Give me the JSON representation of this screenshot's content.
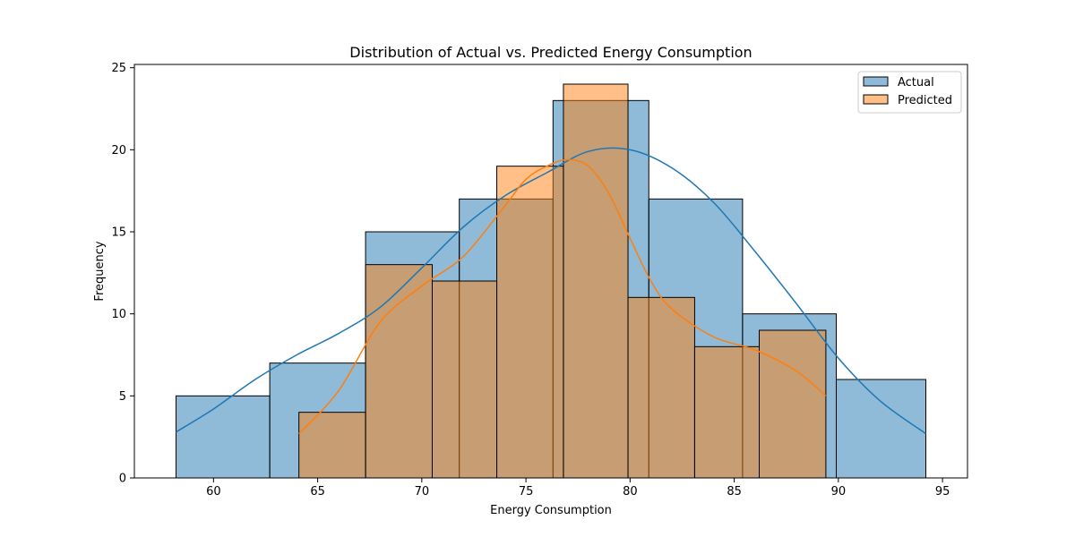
{
  "chart_data": {
    "type": "histogram",
    "title": "Distribution of Actual vs. Predicted Energy Consumption",
    "xlabel": "Energy Consumption",
    "ylabel": "Frequency",
    "xlim": [
      56.2,
      96.2
    ],
    "ylim": [
      0,
      25.2
    ],
    "xticks": [
      60,
      65,
      70,
      75,
      80,
      85,
      90,
      95
    ],
    "yticks": [
      0,
      5,
      10,
      15,
      20,
      25
    ],
    "grid": false,
    "legend_position": "top-right",
    "series": [
      {
        "name": "Actual",
        "color": "#1f77b4",
        "bin_edges": [
          58.2,
          62.7,
          67.3,
          71.8,
          76.3,
          80.9,
          85.4,
          89.9,
          94.2
        ],
        "counts": [
          5,
          7,
          15,
          17,
          23,
          17,
          10,
          6
        ],
        "kde": {
          "x": [
            58.2,
            60,
            62,
            64,
            66,
            68,
            70,
            72,
            74,
            76,
            78,
            80,
            82,
            84,
            86,
            88,
            90,
            92,
            94.2
          ],
          "y": [
            2.8,
            4.2,
            6.0,
            7.5,
            8.8,
            10.4,
            12.8,
            15.3,
            17.2,
            18.6,
            19.9,
            20.0,
            18.9,
            16.8,
            13.8,
            10.6,
            7.3,
            4.7,
            2.7
          ]
        }
      },
      {
        "name": "Predicted",
        "color": "#ff7f0e",
        "bin_edges": [
          64.1,
          67.3,
          70.5,
          73.6,
          76.8,
          79.9,
          83.1,
          86.2,
          89.4
        ],
        "counts": [
          4,
          13,
          12,
          19,
          24,
          11,
          8,
          9
        ],
        "kde": {
          "x": [
            64.1,
            66,
            68,
            70,
            72,
            74,
            75,
            76,
            77,
            78,
            79,
            80,
            81,
            82,
            84,
            86,
            88,
            89.4
          ],
          "y": [
            2.7,
            5.3,
            9.5,
            11.7,
            13.5,
            16.6,
            18.2,
            19.0,
            19.4,
            19.0,
            17.3,
            14.6,
            12.0,
            10.3,
            8.6,
            7.8,
            6.5,
            5.0
          ]
        }
      }
    ]
  }
}
